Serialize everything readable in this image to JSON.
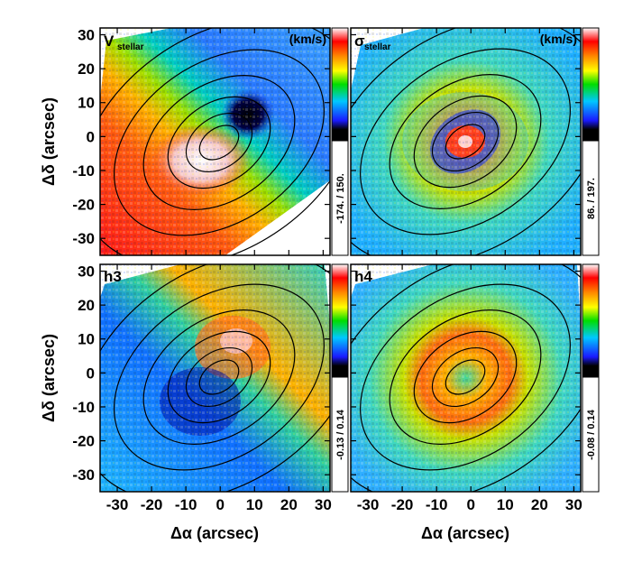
{
  "chart_data": [
    {
      "type": "heatmap",
      "panel": "V",
      "label_main": "V",
      "label_sub": "stellar",
      "unit": "(km/s)",
      "color_range": "-174.  /  150.",
      "ylabel": "Δδ  (arcsec)",
      "xlim": [
        -35,
        32
      ],
      "ylim": [
        -35,
        32
      ],
      "xticks": [
        "-30",
        "-20",
        "-10",
        "0",
        "10",
        "20",
        "30"
      ],
      "yticks": [
        "30",
        "20",
        "10",
        "0",
        "-10",
        "-20",
        "-30"
      ]
    },
    {
      "type": "heatmap",
      "panel": "sigma",
      "label_main": "σ",
      "label_sub": "stellar",
      "unit": "(km/s)",
      "color_range": "86.  /  197.",
      "xlim": [
        -35,
        32
      ],
      "ylim": [
        -35,
        32
      ]
    },
    {
      "type": "heatmap",
      "panel": "h3",
      "label_main": "h3",
      "color_range": "-0.13  /  0.14",
      "ylabel": "Δδ  (arcsec)",
      "xlabel": "Δα  (arcsec)",
      "xlim": [
        -35,
        32
      ],
      "ylim": [
        -35,
        32
      ]
    },
    {
      "type": "heatmap",
      "panel": "h4",
      "label_main": "h4",
      "color_range": "-0.08  /  0.14",
      "xlabel": "Δα  (arcsec)",
      "xlim": [
        -35,
        32
      ],
      "ylim": [
        -35,
        32
      ]
    }
  ],
  "tick_labels": {
    "x": [
      "-30",
      "-20",
      "-10",
      "0",
      "10",
      "20",
      "30"
    ],
    "y": [
      "30",
      "20",
      "10",
      "0",
      "-10",
      "-20",
      "-30"
    ]
  },
  "colorbar_colors": [
    "#000000",
    "#1a1aff",
    "#00c8ff",
    "#00dd00",
    "#ffff00",
    "#ff8800",
    "#ff0000",
    "#ffffff"
  ],
  "colors": {
    "frame": "#000000",
    "contour": "#000000",
    "background": "#ffffff"
  }
}
